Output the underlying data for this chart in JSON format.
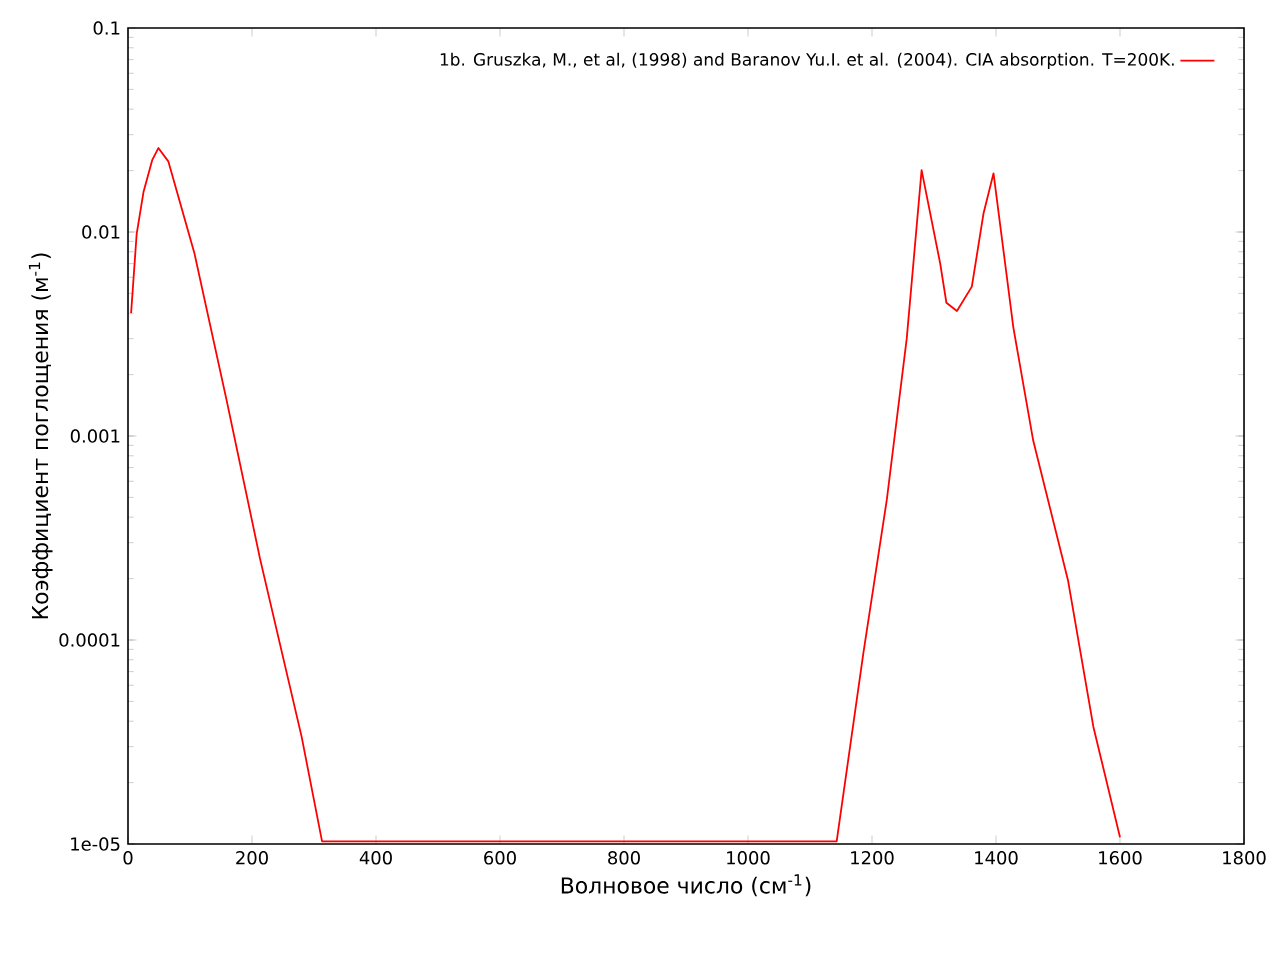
{
  "chart_data": {
    "type": "line",
    "xlabel": "Волновое число (см$^{-1}$)",
    "ylabel": "Коэффициент поглощения (м$^{-1}$)",
    "x": [
      5,
      14,
      25,
      39,
      49,
      65,
      107,
      159,
      213,
      280,
      313,
      700,
      1143,
      1186,
      1224,
      1256,
      1280,
      1310,
      1320,
      1337,
      1361,
      1380,
      1396,
      1428,
      1460,
      1516,
      1557,
      1600
    ],
    "series": [
      {
        "name": "1b. Gruszka, M., et al, (1998) and Baranov Yu.I. et al. (2004).  CIA absorption. T=200K.",
        "color": "#ff0000",
        "values": [
          0.004,
          0.0098,
          0.0157,
          0.0225,
          0.0258,
          0.0222,
          0.0079,
          0.0015,
          0.00025,
          3.36e-05,
          1.03e-05,
          1.03e-05,
          1.03e-05,
          8.6e-05,
          0.00049,
          0.003,
          0.0201,
          0.007,
          0.0045,
          0.0041,
          0.0054,
          0.0124,
          0.0194,
          0.0034,
          0.00095,
          0.000197,
          3.76e-05,
          1.08e-05
        ]
      }
    ],
    "xlim": [
      0,
      1800
    ],
    "ylim": [
      1e-05,
      0.1
    ],
    "log": "y",
    "xticks": [
      0,
      200,
      400,
      600,
      800,
      1000,
      1200,
      1400,
      1600,
      1800
    ],
    "yticks": [
      {
        "value": 1e-05,
        "label": "1e-05"
      },
      0.0001,
      0.001,
      0.01,
      0.1
    ],
    "grid": false,
    "legend": "top right",
    "marker": "none",
    "line_style": "solid"
  }
}
